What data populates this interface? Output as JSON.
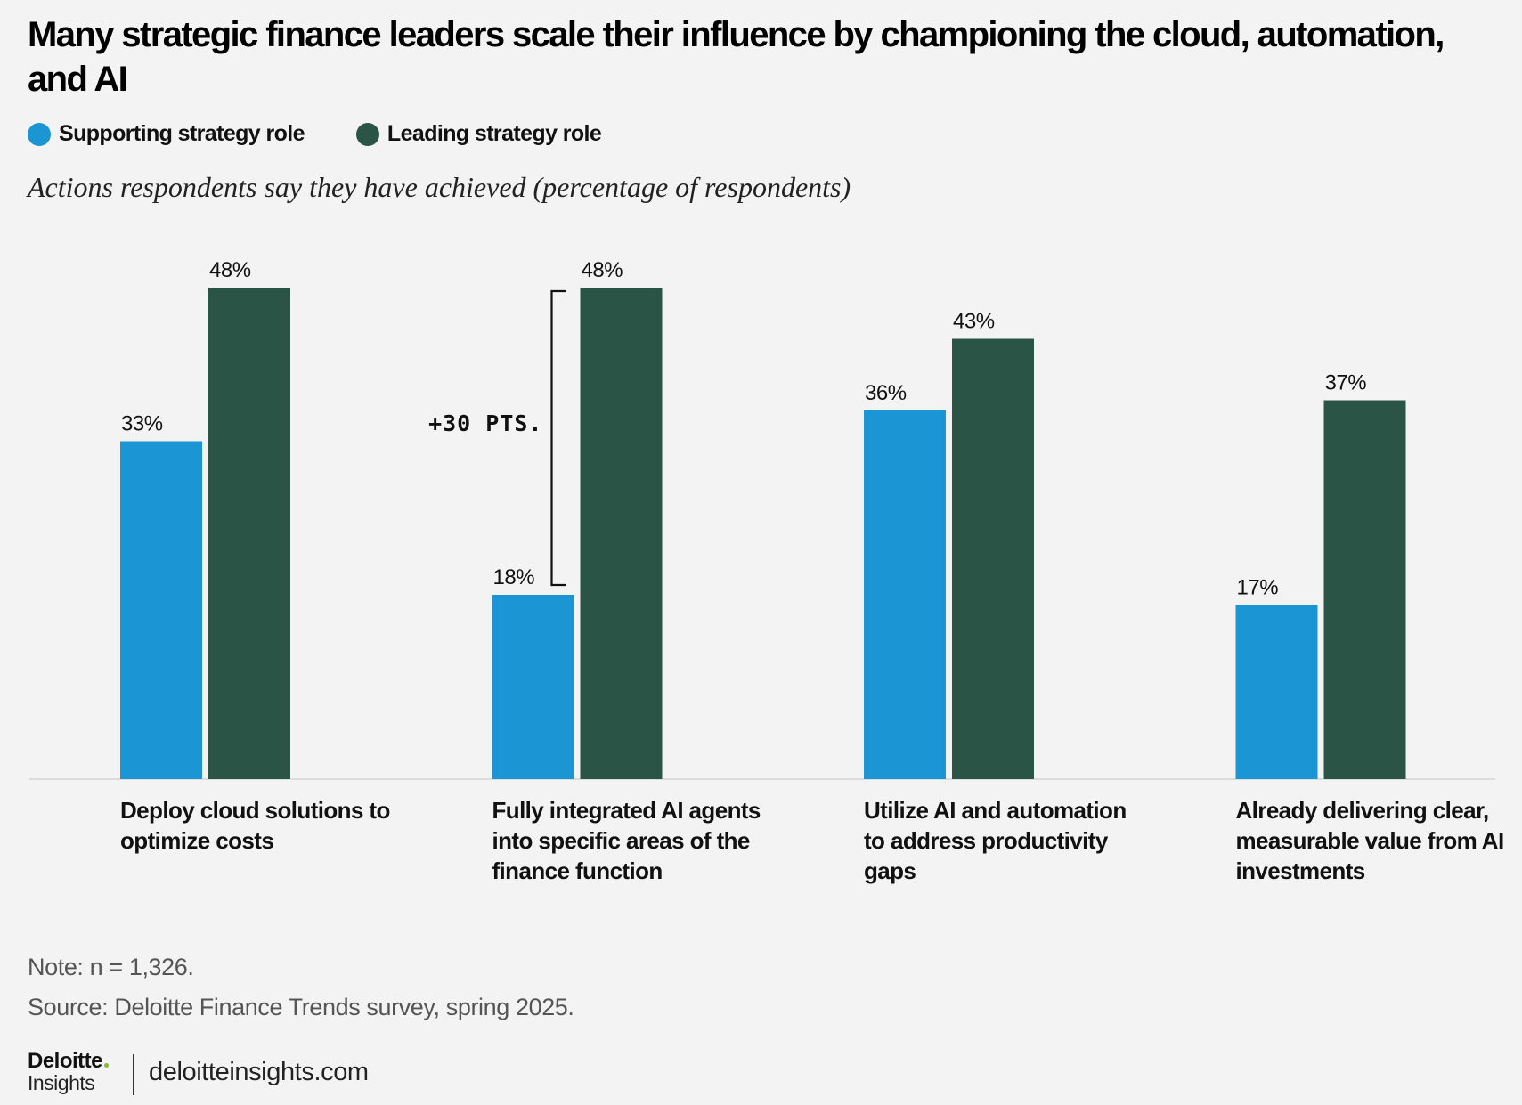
{
  "chart_data": {
    "type": "bar",
    "title": "Many strategic finance leaders scale their influence by championing the cloud, automation, and AI",
    "subtitle": "Actions respondents say they have achieved (percentage of respondents)",
    "categories": [
      "Deploy cloud solutions to optimize costs",
      "Fully integrated AI agents into specific areas of the finance function",
      "Utilize AI and automation to address productivity gaps",
      "Already delivering clear, measurable value from AI investments"
    ],
    "series": [
      {
        "name": "Supporting strategy role",
        "color": "#1b95d4",
        "values": [
          33,
          18,
          36,
          17
        ],
        "value_labels": [
          "33%",
          "18%",
          "36%",
          "17%"
        ]
      },
      {
        "name": "Leading strategy role",
        "color": "#2a5446",
        "values": [
          48,
          48,
          43,
          37
        ],
        "value_labels": [
          "48%",
          "48%",
          "43%",
          "37%"
        ]
      }
    ],
    "annotation": "+30 PTS.",
    "note": "Note: n = 1,326.",
    "source": "Source: Deloitte Finance Trends survey, spring 2025."
  },
  "footer": {
    "brand": "Deloitte",
    "brand_sub": "Insights",
    "url": "deloitteinsights.com"
  }
}
